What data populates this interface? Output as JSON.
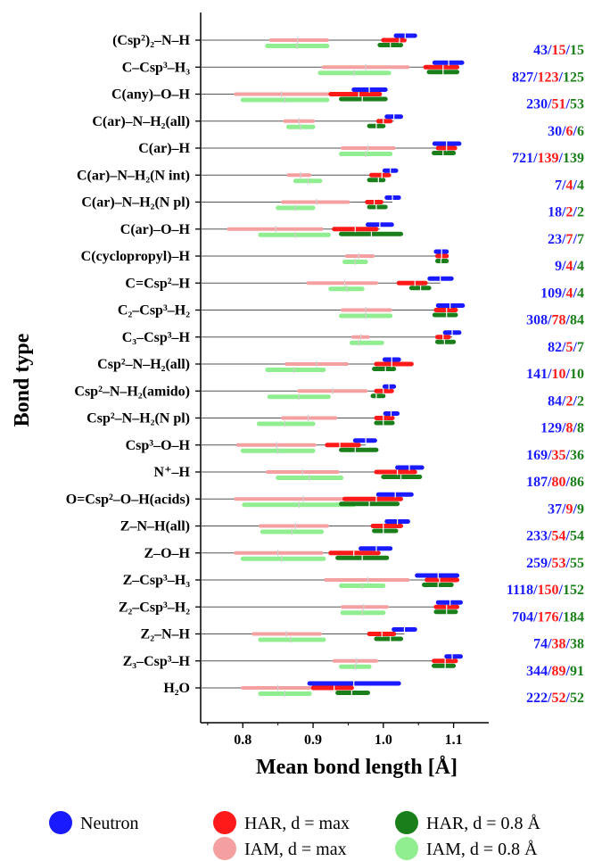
{
  "chart_data": {
    "type": "range-dot",
    "xlabel": "Mean bond length [Å]",
    "ylabel": "Bond type",
    "xlim": [
      0.74,
      1.15
    ],
    "xticks": [
      "0.8",
      "0.9",
      "1.0",
      "1.1"
    ],
    "colors": {
      "neutron": "#1a1aff",
      "har_max": "#ff1a1a",
      "iam_max": "#f4a0a0",
      "har_08": "#1a7f1a",
      "iam_08": "#90ee90"
    },
    "categories": [
      "(Csp²)₂–N–H",
      "C–Csp³–H₃",
      "C(any)–O–H",
      "C(ar)–N–H₂(all)",
      "C(ar)–H",
      "C(ar)–N–H₂(N int)",
      "C(ar)–N–H₂(N pl)",
      "C(ar)–O–H",
      "C(cyclopropyl)–H",
      "C=Csp²–H",
      "C₂–Csp³–H₂",
      "C₃–Csp³–H",
      "Csp²–N–H₂(all)",
      "Csp²–N–H₂(amido)",
      "Csp²–N–H₂(N pl)",
      "Csp³–O–H",
      "N⁺–H",
      "O=Csp²–O–H(acids)",
      "Z–N–H(all)",
      "Z–O–H",
      "Z–Csp³–H₃",
      "Z₂–Csp³–H₂",
      "Z₂–N–H",
      "Z₃–Csp³–H",
      "H₂O"
    ],
    "series": [
      {
        "name": "Neutron",
        "color": "#1a1aff",
        "values": [
          1.031,
          1.093,
          0.98,
          1.015,
          1.09,
          1.01,
          1.013,
          0.995,
          1.083,
          1.081,
          1.095,
          1.098,
          1.012,
          1.008,
          1.011,
          0.975,
          1.037,
          1.017,
          1.02,
          0.99,
          1.078,
          1.095,
          1.03,
          1.098,
          0.958
        ],
        "ranges": [
          [
            1.018,
            1.045
          ],
          [
            1.073,
            1.112
          ],
          [
            0.958,
            1.003
          ],
          [
            1.005,
            1.025
          ],
          [
            1.073,
            1.108
          ],
          [
            1.002,
            1.018
          ],
          [
            1.005,
            1.022
          ],
          [
            0.978,
            1.012
          ],
          [
            1.075,
            1.09
          ],
          [
            1.066,
            1.097
          ],
          [
            1.078,
            1.113
          ],
          [
            1.088,
            1.108
          ],
          [
            1.002,
            1.022
          ],
          [
            1.002,
            1.015
          ],
          [
            1.003,
            1.02
          ],
          [
            0.96,
            0.988
          ],
          [
            1.02,
            1.055
          ],
          [
            0.993,
            1.04
          ],
          [
            1.005,
            1.035
          ],
          [
            0.968,
            1.01
          ],
          [
            1.048,
            1.105
          ],
          [
            1.078,
            1.11
          ],
          [
            1.015,
            1.045
          ],
          [
            1.09,
            1.11
          ],
          [
            0.895,
            1.022
          ]
        ]
      },
      {
        "name": "HAR, d = max",
        "color": "#ff1a1a",
        "values": [
          1.023,
          1.085,
          0.965,
          1.0,
          1.09,
          0.998,
          0.987,
          0.96,
          1.083,
          1.045,
          1.09,
          1.085,
          1.012,
          1.0,
          1.0,
          0.938,
          1.02,
          0.99,
          1.0,
          0.958,
          1.08,
          1.09,
          0.998,
          1.088,
          0.93
        ],
        "ranges": [
          [
            1.0,
            1.03
          ],
          [
            1.06,
            1.105
          ],
          [
            0.925,
            0.995
          ],
          [
            0.993,
            1.01
          ],
          [
            1.078,
            1.102
          ],
          [
            0.983,
            1.008
          ],
          [
            0.977,
            0.997
          ],
          [
            0.93,
            0.99
          ],
          [
            1.077,
            1.09
          ],
          [
            1.022,
            1.06
          ],
          [
            1.075,
            1.103
          ],
          [
            1.077,
            1.093
          ],
          [
            0.99,
            1.04
          ],
          [
            0.99,
            1.012
          ],
          [
            0.99,
            1.013
          ],
          [
            0.92,
            0.965
          ],
          [
            0.99,
            1.045
          ],
          [
            0.945,
            1.025
          ],
          [
            0.985,
            1.025
          ],
          [
            0.925,
            0.993
          ],
          [
            1.062,
            1.105
          ],
          [
            1.075,
            1.105
          ],
          [
            0.98,
            1.015
          ],
          [
            1.072,
            1.103
          ],
          [
            0.9,
            0.955
          ]
        ]
      },
      {
        "name": "IAM, d = max",
        "color": "#f4a0a0",
        "values": [
          0.878,
          0.975,
          0.855,
          0.88,
          0.978,
          0.882,
          0.905,
          0.847,
          0.965,
          0.945,
          0.975,
          0.968,
          0.905,
          0.928,
          0.893,
          0.848,
          0.885,
          0.886,
          0.875,
          0.85,
          0.978,
          0.972,
          0.862,
          0.962,
          0.85
        ],
        "ranges": [
          [
            0.84,
            0.92
          ],
          [
            0.915,
            1.035
          ],
          [
            0.79,
            0.92
          ],
          [
            0.86,
            0.9
          ],
          [
            0.942,
            1.015
          ],
          [
            0.865,
            0.895
          ],
          [
            0.857,
            0.95
          ],
          [
            0.78,
            0.912
          ],
          [
            0.948,
            0.985
          ],
          [
            0.893,
            0.99
          ],
          [
            0.942,
            1.01
          ],
          [
            0.957,
            0.978
          ],
          [
            0.862,
            0.948
          ],
          [
            0.88,
            0.975
          ],
          [
            0.857,
            0.932
          ],
          [
            0.793,
            0.902
          ],
          [
            0.835,
            0.935
          ],
          [
            0.79,
            0.993
          ],
          [
            0.825,
            0.92
          ],
          [
            0.79,
            0.912
          ],
          [
            0.918,
            1.035
          ],
          [
            0.942,
            1.005
          ],
          [
            0.815,
            0.91
          ],
          [
            0.93,
            0.99
          ],
          [
            0.8,
            0.895
          ]
        ]
      },
      {
        "name": "HAR, d = 0.8 Å",
        "color": "#1a7f1a",
        "values": [
          1.01,
          1.085,
          0.97,
          0.99,
          1.085,
          0.993,
          0.99,
          0.983,
          1.082,
          1.053,
          1.09,
          1.087,
          1.003,
          0.99,
          1.0,
          0.96,
          1.025,
          0.98,
          1.0,
          0.97,
          1.078,
          1.09,
          1.01,
          1.088,
          0.955
        ],
        "ranges": [
          [
            0.995,
            1.025
          ],
          [
            1.065,
            1.105
          ],
          [
            0.94,
            1.003
          ],
          [
            0.98,
            1.0
          ],
          [
            1.072,
            1.1
          ],
          [
            0.98,
            1.0
          ],
          [
            0.98,
            1.003
          ],
          [
            0.94,
            1.025
          ],
          [
            1.077,
            1.09
          ],
          [
            1.04,
            1.065
          ],
          [
            1.073,
            1.103
          ],
          [
            1.077,
            1.1
          ],
          [
            0.987,
            1.015
          ],
          [
            0.985,
            1.0
          ],
          [
            0.99,
            1.013
          ],
          [
            0.94,
            0.99
          ],
          [
            1.0,
            1.052
          ],
          [
            0.94,
            1.02
          ],
          [
            0.987,
            1.018
          ],
          [
            0.935,
            1.005
          ],
          [
            1.058,
            1.097
          ],
          [
            1.075,
            1.103
          ],
          [
            0.99,
            1.025
          ],
          [
            1.072,
            1.1
          ],
          [
            0.935,
            0.978
          ]
        ]
      },
      {
        "name": "IAM, d = 0.8 Å",
        "color": "#90ee90",
        "values": [
          0.877,
          0.958,
          0.86,
          0.882,
          0.975,
          0.893,
          0.875,
          0.875,
          0.96,
          0.948,
          0.975,
          0.965,
          0.873,
          0.88,
          0.86,
          0.85,
          0.895,
          0.88,
          0.87,
          0.855,
          0.97,
          0.97,
          0.868,
          0.96,
          0.86
        ],
        "ranges": [
          [
            0.835,
            0.92
          ],
          [
            0.91,
            1.008
          ],
          [
            0.8,
            0.92
          ],
          [
            0.865,
            0.9
          ],
          [
            0.94,
            1.01
          ],
          [
            0.875,
            0.91
          ],
          [
            0.85,
            0.9
          ],
          [
            0.825,
            0.922
          ],
          [
            0.945,
            0.975
          ],
          [
            0.925,
            0.97
          ],
          [
            0.94,
            1.01
          ],
          [
            0.955,
            0.998
          ],
          [
            0.835,
            0.915
          ],
          [
            0.838,
            0.922
          ],
          [
            0.823,
            0.9
          ],
          [
            0.8,
            0.9
          ],
          [
            0.85,
            0.94
          ],
          [
            0.802,
            0.958
          ],
          [
            0.828,
            0.912
          ],
          [
            0.8,
            0.915
          ],
          [
            0.94,
            1.0
          ],
          [
            0.942,
            1.0
          ],
          [
            0.825,
            0.915
          ],
          [
            0.94,
            0.98
          ],
          [
            0.825,
            0.895
          ]
        ]
      }
    ],
    "counts": [
      [
        "43",
        "15",
        "15"
      ],
      [
        "827",
        "123",
        "125"
      ],
      [
        "230",
        "51",
        "53"
      ],
      [
        "30",
        "6",
        "6"
      ],
      [
        "721",
        "139",
        "139"
      ],
      [
        "7",
        "4",
        "4"
      ],
      [
        "18",
        "2",
        "2"
      ],
      [
        "23",
        "7",
        "7"
      ],
      [
        "9",
        "4",
        "4"
      ],
      [
        "109",
        "4",
        "4"
      ],
      [
        "308",
        "78",
        "84"
      ],
      [
        "82",
        "5",
        "7"
      ],
      [
        "141",
        "10",
        "10"
      ],
      [
        "84",
        "2",
        "2"
      ],
      [
        "129",
        "8",
        "8"
      ],
      [
        "169",
        "35",
        "36"
      ],
      [
        "187",
        "80",
        "86"
      ],
      [
        "37",
        "9",
        "9"
      ],
      [
        "233",
        "54",
        "54"
      ],
      [
        "259",
        "53",
        "55"
      ],
      [
        "1118",
        "150",
        "152"
      ],
      [
        "704",
        "176",
        "184"
      ],
      [
        "74",
        "38",
        "38"
      ],
      [
        "344",
        "89",
        "91"
      ],
      [
        "222",
        "52",
        "52"
      ]
    ],
    "legend": [
      {
        "label": "Neutron",
        "color": "#1a1aff"
      },
      {
        "label": "HAR, d = max",
        "color": "#ff1a1a"
      },
      {
        "label": "HAR, d = 0.8 Å",
        "color": "#1a7f1a"
      },
      {
        "label": "IAM, d = max",
        "color": "#f4a0a0"
      },
      {
        "label": "IAM, d = 0.8 Å",
        "color": "#90ee90"
      }
    ]
  }
}
